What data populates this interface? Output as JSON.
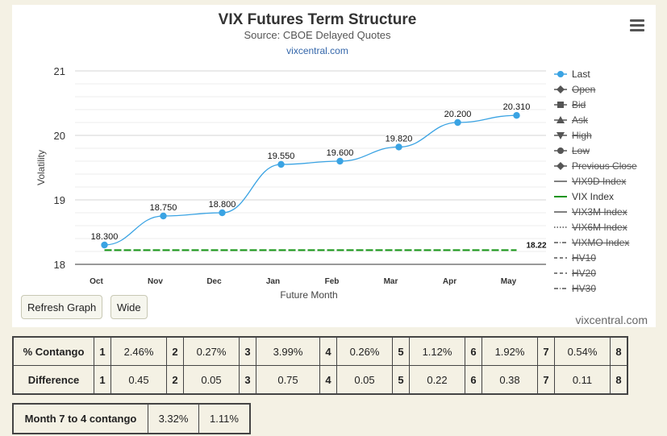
{
  "chart_title": "VIX Futures Term Structure",
  "chart_subtitle": "Source: CBOE Delayed Quotes",
  "chart_link": "vixcentral.com",
  "credit": "vixcentral.com",
  "buttons": {
    "refresh": "Refresh Graph",
    "wide": "Wide"
  },
  "menu_icon": "hamburger-menu-icon",
  "colors": {
    "last": "#3aa3e3",
    "vix_index": "#129412",
    "grid": "#dddddd",
    "axis": "#333333"
  },
  "chart_data": {
    "type": "line",
    "title": "VIX Futures Term Structure",
    "subtitle": "Source: CBOE Delayed Quotes",
    "xlabel": "Future Month",
    "ylabel": "Volatility",
    "categories": [
      "Oct",
      "Nov",
      "Dec",
      "Jan",
      "Feb",
      "Mar",
      "Apr",
      "May"
    ],
    "ylim": [
      18,
      21
    ],
    "yticks": [
      18,
      19,
      20,
      21
    ],
    "grid": true,
    "legend_position": "right",
    "series": [
      {
        "name": "Last",
        "values": [
          18.3,
          18.75,
          18.8,
          19.55,
          19.6,
          19.82,
          20.2,
          20.31
        ],
        "labels": [
          "18.300",
          "18.750",
          "18.800",
          "19.550",
          "19.600",
          "19.820",
          "20.200",
          "20.310"
        ],
        "visible": true
      },
      {
        "name": "VIX Index",
        "values": [
          18.22,
          18.22,
          18.22,
          18.22,
          18.22,
          18.22,
          18.22,
          18.22
        ],
        "end_label": "18.22",
        "visible": true,
        "style": "dashed"
      }
    ],
    "legend": [
      {
        "name": "Last",
        "visible": true,
        "symbol": "circle-line"
      },
      {
        "name": "Open",
        "visible": false,
        "symbol": "diamond"
      },
      {
        "name": "Bid",
        "visible": false,
        "symbol": "square"
      },
      {
        "name": "Ask",
        "visible": false,
        "symbol": "triangle"
      },
      {
        "name": "High",
        "visible": false,
        "symbol": "triangle-down"
      },
      {
        "name": "Low",
        "visible": false,
        "symbol": "circle"
      },
      {
        "name": "Previous Close",
        "visible": false,
        "symbol": "diamond"
      },
      {
        "name": "VIX9D Index",
        "visible": false,
        "symbol": "line"
      },
      {
        "name": "VIX Index",
        "visible": true,
        "symbol": "line-green"
      },
      {
        "name": "VIX3M Index",
        "visible": false,
        "symbol": "line"
      },
      {
        "name": "VIX6M Index",
        "visible": false,
        "symbol": "dotted"
      },
      {
        "name": "VIXMO Index",
        "visible": false,
        "symbol": "dash-dot"
      },
      {
        "name": "HV10",
        "visible": false,
        "symbol": "dashed"
      },
      {
        "name": "HV20",
        "visible": false,
        "symbol": "dashed"
      },
      {
        "name": "HV30",
        "visible": false,
        "symbol": "dash-dot"
      }
    ]
  },
  "contango_table": {
    "rows": [
      {
        "label": "% Contango",
        "cells": [
          [
            "1",
            "2.46%"
          ],
          [
            "2",
            "0.27%"
          ],
          [
            "3",
            "3.99%"
          ],
          [
            "4",
            "0.26%"
          ],
          [
            "5",
            "1.12%"
          ],
          [
            "6",
            "1.92%"
          ],
          [
            "7",
            "0.54%"
          ],
          [
            "8",
            ""
          ]
        ]
      },
      {
        "label": "Difference",
        "cells": [
          [
            "1",
            "0.45"
          ],
          [
            "2",
            "0.05"
          ],
          [
            "3",
            "0.75"
          ],
          [
            "4",
            "0.05"
          ],
          [
            "5",
            "0.22"
          ],
          [
            "6",
            "0.38"
          ],
          [
            "7",
            "0.11"
          ],
          [
            "8",
            ""
          ]
        ]
      }
    ]
  },
  "month_table": {
    "label": "Month 7 to 4 contango",
    "values": [
      "3.32%",
      "1.11%"
    ]
  }
}
